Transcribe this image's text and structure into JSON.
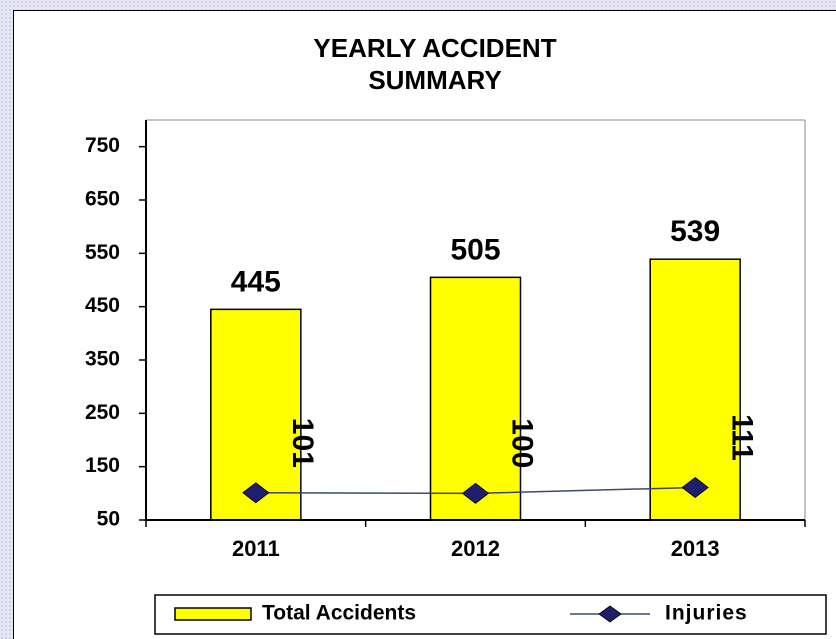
{
  "chart_data": {
    "type": "bar",
    "title": "YEARLY ACCIDENT SUMMARY",
    "categories": [
      "2011",
      "2012",
      "2013"
    ],
    "series": [
      {
        "name": "Total Accidents",
        "type": "bar",
        "color": "#ffff00",
        "values": [
          445,
          505,
          539
        ]
      },
      {
        "name": "Injuries",
        "type": "line",
        "color": "#1f1f6e",
        "values": [
          101,
          100,
          111
        ]
      }
    ],
    "ylim": [
      50,
      800
    ],
    "yticks": [
      50,
      150,
      250,
      350,
      450,
      550,
      650,
      750
    ],
    "legend": "bottom"
  }
}
